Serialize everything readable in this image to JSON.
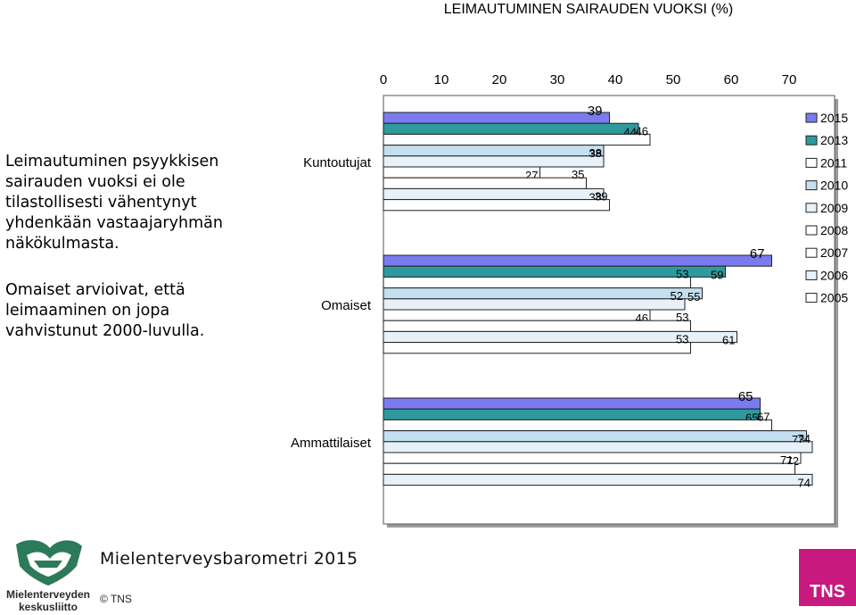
{
  "header": {
    "title": "LEIMAUTUMINEN SAIRAUDEN VUOKSI (%)"
  },
  "text": {
    "paragraph1": [
      "Leimautuminen psyykkisen",
      "sairauden vuoksi ei ole",
      "tilastollisesti vähentynyt",
      "yhdenkään vastaajaryhmän",
      "näkökulmasta."
    ],
    "paragraph2": [
      "Omaiset arvioivat, että",
      "leimaaminen on jopa",
      "vahvistunut 2000-luvulla."
    ]
  },
  "footer": {
    "title": "Mielenterveysbarometri 2015",
    "copyright": "© TNS",
    "logo_left_text": [
      "Mielenterveyden",
      "keskusliitto"
    ],
    "logo_right_text": "TNS",
    "logo_left_icon": "handshake-icon"
  },
  "chart_data": {
    "type": "bar",
    "orientation": "horizontal",
    "xlim": [
      0,
      70
    ],
    "xticks": [
      0,
      10,
      20,
      30,
      40,
      50,
      60,
      70
    ],
    "x_axis_position": "top",
    "legend_position": "right",
    "categories": [
      "Kuntoutujat",
      "Omaiset",
      "Ammattilaiset"
    ],
    "series": [
      {
        "name": "2015",
        "color": "#7b7bf0",
        "values": [
          39,
          67,
          65
        ]
      },
      {
        "name": "2013",
        "color": "#2e9a9e",
        "values": [
          44,
          59,
          65
        ]
      },
      {
        "name": "2011",
        "color": "#ffffff",
        "values": [
          46,
          53,
          67
        ]
      },
      {
        "name": "2010",
        "color": "#c3dff0",
        "values": [
          38,
          55,
          73
        ]
      },
      {
        "name": "2009",
        "color": "#e6f1f9",
        "values": [
          38,
          52,
          74
        ]
      },
      {
        "name": "2008",
        "color": "#ffffff",
        "values": [
          27,
          46,
          72
        ]
      },
      {
        "name": "2007",
        "color": "#ffffff",
        "values": [
          35,
          53,
          71
        ]
      },
      {
        "name": "2006",
        "color": "#e6f1f9",
        "values": [
          38,
          61,
          74
        ]
      },
      {
        "name": "2005",
        "color": "#ffffff",
        "values": [
          39,
          53,
          null
        ]
      }
    ]
  }
}
